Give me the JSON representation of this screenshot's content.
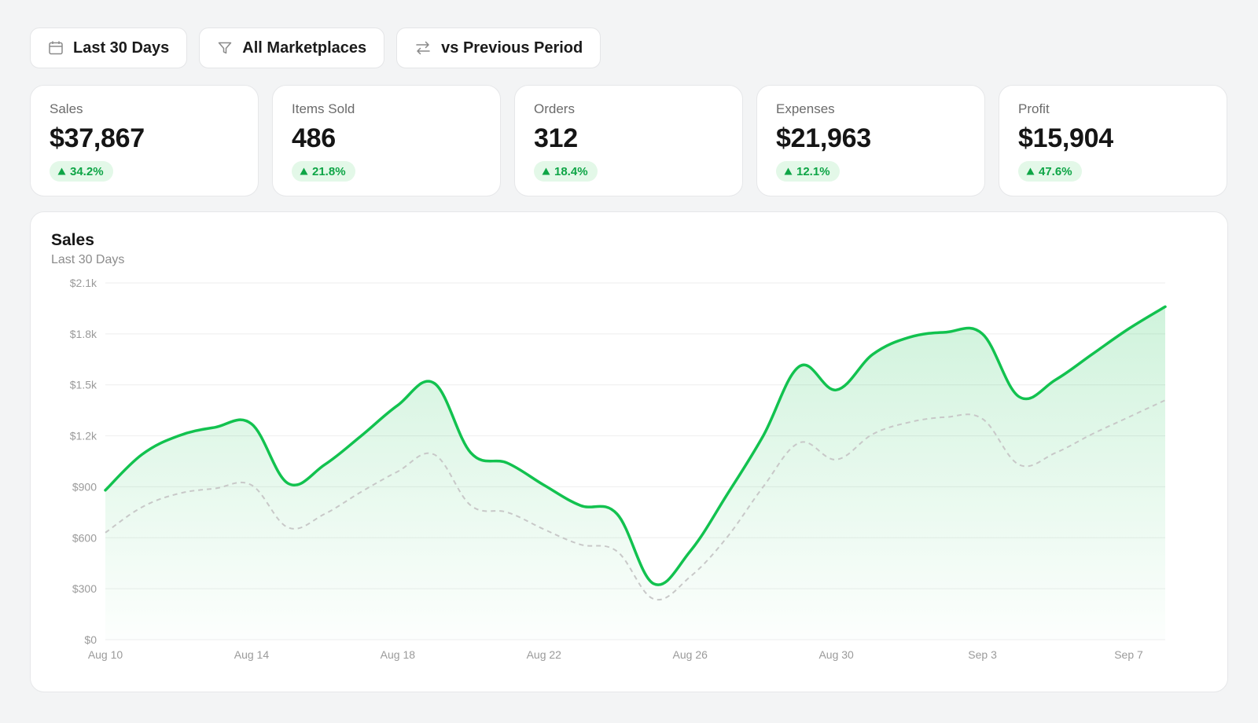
{
  "toolbar": {
    "date_range": {
      "label": "Last 30 Days",
      "icon": "calendar-icon"
    },
    "marketplace": {
      "label": "All Marketplaces",
      "icon": "filter-icon"
    },
    "compare": {
      "label": "vs Previous Period",
      "icon": "swap-arrows-icon"
    }
  },
  "kpis": [
    {
      "label": "Sales",
      "value": "$37,867",
      "change": "34.2%"
    },
    {
      "label": "Items Sold",
      "value": "486",
      "change": "21.8%"
    },
    {
      "label": "Orders",
      "value": "312",
      "change": "18.4%"
    },
    {
      "label": "Expenses",
      "value": "$21,963",
      "change": "12.1%"
    },
    {
      "label": "Profit",
      "value": "$15,904",
      "change": "47.6%"
    }
  ],
  "colors": {
    "accent": "#12c24f",
    "badge_bg": "#e3f8e8",
    "badge_text": "#0ea546",
    "previous_series": "#c8c8c8"
  },
  "chart": {
    "title": "Sales",
    "subtitle": "Last 30 Days"
  },
  "chart_data": {
    "type": "area",
    "title": "Sales",
    "subtitle": "Last 30 Days",
    "ylim": [
      0,
      2100
    ],
    "y_ticks": [
      0,
      300,
      600,
      900,
      1200,
      1500,
      1800,
      2100
    ],
    "y_tick_labels": [
      "$0",
      "$300",
      "$600",
      "$900",
      "$1.2k",
      "$1.5k",
      "$1.8k",
      "$2.1k"
    ],
    "x_tick_labels": [
      "Aug 10",
      "Aug 14",
      "Aug 18",
      "Aug 22",
      "Aug 26",
      "Aug 30",
      "Sep 3",
      "Sep 7"
    ],
    "x_tick_index": [
      0,
      4,
      8,
      12,
      16,
      20,
      24,
      28
    ],
    "grid": true,
    "legend": "none",
    "x": [
      "Aug 10",
      "Aug 11",
      "Aug 12",
      "Aug 13",
      "Aug 14",
      "Aug 15",
      "Aug 16",
      "Aug 17",
      "Aug 18",
      "Aug 19",
      "Aug 20",
      "Aug 21",
      "Aug 22",
      "Aug 23",
      "Aug 24",
      "Aug 25",
      "Aug 26",
      "Aug 27",
      "Aug 28",
      "Aug 29",
      "Aug 30",
      "Aug 31",
      "Sep 1",
      "Sep 2",
      "Sep 3",
      "Sep 4",
      "Sep 5",
      "Sep 6",
      "Sep 7",
      "Sep 8"
    ],
    "series": [
      {
        "style": "solid-area",
        "values": [
          880,
          1090,
          1200,
          1250,
          1270,
          920,
          1030,
          1200,
          1380,
          1510,
          1100,
          1040,
          910,
          790,
          740,
          330,
          520,
          850,
          1200,
          1610,
          1470,
          1680,
          1780,
          1810,
          1800,
          1430,
          1530,
          1680,
          1830,
          1960
        ]
      },
      {
        "style": "dashed",
        "values": [
          630,
          780,
          860,
          890,
          910,
          660,
          740,
          870,
          990,
          1090,
          790,
          750,
          650,
          560,
          520,
          240,
          370,
          600,
          900,
          1160,
          1060,
          1210,
          1280,
          1310,
          1300,
          1030,
          1100,
          1210,
          1310,
          1410
        ]
      }
    ]
  }
}
